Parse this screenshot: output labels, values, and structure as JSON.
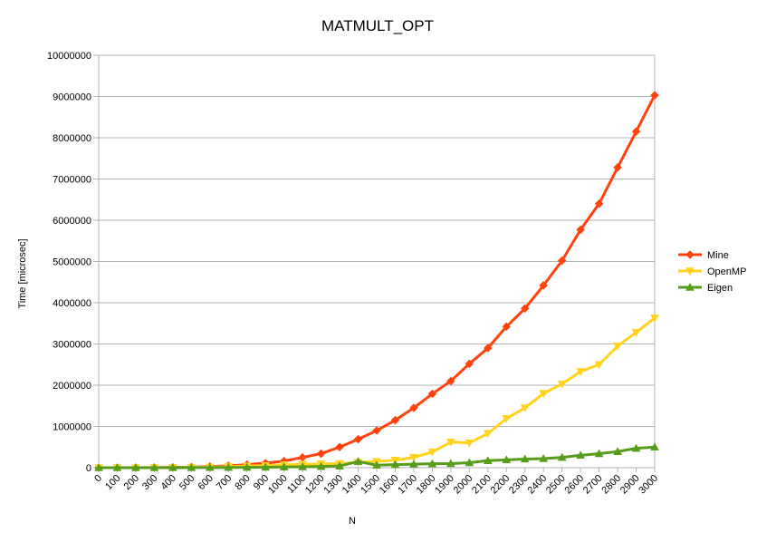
{
  "chart_data": {
    "type": "line",
    "title": "MATMULT_OPT",
    "xlabel": "N",
    "ylabel": "Time [microsec]",
    "ylim": [
      0,
      10000000
    ],
    "y_ticks": [
      "0",
      "1000000",
      "2000000",
      "3000000",
      "4000000",
      "5000000",
      "6000000",
      "7000000",
      "8000000",
      "9000000",
      "10000000"
    ],
    "grid": "horizontal",
    "legend_position": "right",
    "categories": [
      "0",
      "100",
      "200",
      "300",
      "400",
      "500",
      "600",
      "700",
      "800",
      "900",
      "1000",
      "1100",
      "1200",
      "1300",
      "1400",
      "1500",
      "1600",
      "1700",
      "1800",
      "1900",
      "2000",
      "2100",
      "2200",
      "2300",
      "2400",
      "2500",
      "2600",
      "2700",
      "2800",
      "2900",
      "3000"
    ],
    "series": [
      {
        "name": "Mine",
        "color": "#ff420e",
        "marker": "diamond",
        "values": [
          0,
          100,
          1000,
          3000,
          8000,
          15000,
          28000,
          45000,
          75000,
          110000,
          160000,
          250000,
          340000,
          500000,
          690000,
          900000,
          1150000,
          1450000,
          1790000,
          2100000,
          2520000,
          2900000,
          3420000,
          3860000,
          4420000,
          5020000,
          5770000,
          6400000,
          7280000,
          8150000,
          9030000
        ]
      },
      {
        "name": "OpenMP",
        "color": "#ffd320",
        "marker": "triangle-down",
        "values": [
          0,
          100,
          500,
          1500,
          4000,
          8000,
          15000,
          25000,
          40000,
          50000,
          70000,
          80000,
          90000,
          100000,
          130000,
          150000,
          180000,
          250000,
          380000,
          620000,
          600000,
          830000,
          1190000,
          1450000,
          1800000,
          2030000,
          2330000,
          2500000,
          2950000,
          3280000,
          3630000
        ]
      },
      {
        "name": "Eigen",
        "color": "#579d1c",
        "marker": "triangle-up",
        "values": [
          0,
          50,
          200,
          500,
          1000,
          2000,
          4000,
          6000,
          9000,
          12000,
          16000,
          22000,
          30000,
          40000,
          150000,
          60000,
          75000,
          85000,
          95000,
          100000,
          120000,
          170000,
          190000,
          210000,
          220000,
          250000,
          300000,
          340000,
          390000,
          470000,
          500000
        ]
      }
    ]
  }
}
